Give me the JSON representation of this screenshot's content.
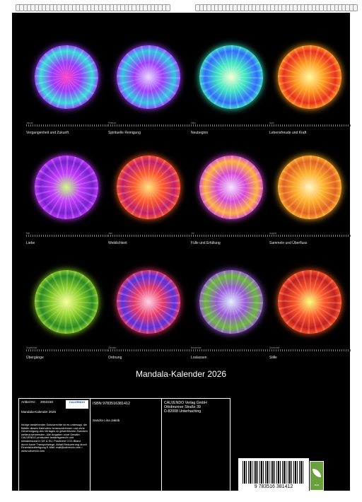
{
  "title": "Mandala-Kalender 2026",
  "months": [
    {
      "month": "Januar",
      "caption": "Vergangenheit und Zukunft",
      "colors": [
        "#ff3fc3",
        "#9b3bff",
        "#35e0d8"
      ]
    },
    {
      "month": "Februar",
      "caption": "Spirituelle Reinigung",
      "colors": [
        "#e6d8ff",
        "#a13dff",
        "#2fc8e0"
      ]
    },
    {
      "month": "März",
      "caption": "Neubeginn",
      "colors": [
        "#f6ffd0",
        "#3de6c3",
        "#2f6bff"
      ]
    },
    {
      "month": "April",
      "caption": "Lebensfreude und Kraft",
      "colors": [
        "#fff9a0",
        "#ff9d1e",
        "#e8301c"
      ]
    },
    {
      "month": "Mai",
      "caption": "Liebe",
      "colors": [
        "#c7ff7a",
        "#c23dff",
        "#7a1fd0"
      ]
    },
    {
      "month": "Juni",
      "caption": "Weiblichkeit",
      "colors": [
        "#ffe07a",
        "#ff5a2a",
        "#c21f6b"
      ]
    },
    {
      "month": "Juli",
      "caption": "Fülle und Erfüllung",
      "colors": [
        "#f4e0ff",
        "#d64ad8",
        "#ffb23a"
      ]
    },
    {
      "month": "August",
      "caption": "Sammeln und Überfluss",
      "colors": [
        "#fff4c2",
        "#ffb02a",
        "#e0621e"
      ]
    },
    {
      "month": "September",
      "caption": "Übergänge",
      "colors": [
        "#f6ff9a",
        "#8ed02a",
        "#2a8a1e"
      ]
    },
    {
      "month": "Oktober",
      "caption": "Ordnung",
      "colors": [
        "#ffd2e6",
        "#e83a6a",
        "#5a2fe0"
      ]
    },
    {
      "month": "November",
      "caption": "Loslassen",
      "colors": [
        "#e0f0ff",
        "#9a5ad8",
        "#6ab83a"
      ]
    },
    {
      "month": "Dezember",
      "caption": "Stille",
      "colors": [
        "#f6ff7a",
        "#ff5a2a",
        "#c21f1f"
      ]
    }
  ],
  "info": {
    "article_label": "Artikel-Nr.:",
    "article_no": "2053158",
    "logo": "CALVENDO",
    "product_title": "Mandala-Kalender 2026",
    "legal_text": "Infolge bestehender Schutzrechte ist es untersagt, die Blätter dieses Kalenders herauszutrennen und ohne Genehmigung des Verlages zu gewerblichen Zwecken weiterzuverwenden. Alle Angaben ohne Gewähr. CALVENDO produziert bedarfsgerecht und klimabewusst in DE & EU. Positivere CO2-Bilanz durch kurze Transportwege, Abfall-Reduzierung durch Einzelstückfertigung E-Mail: mail@calvendo.com • www.calvendo.com",
    "isbn": "ISBN 9783516381412",
    "author": "Sandra Lina Jakob",
    "publisher": "CALVENDO Verlag GmbH",
    "street": "Ottobrunner Straße 39",
    "city": "D-82008 Unterhaching",
    "barcode_number": "9 783516 381412",
    "eco_label": "eco"
  }
}
